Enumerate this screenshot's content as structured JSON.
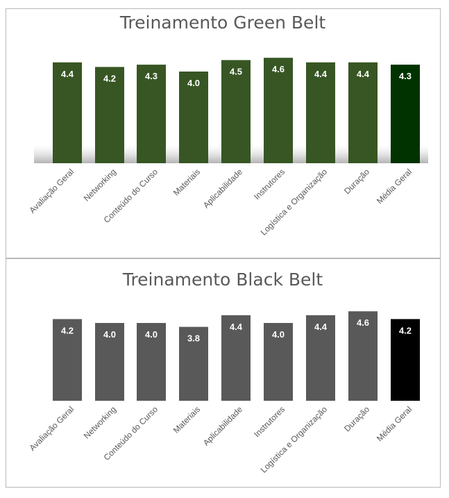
{
  "chart_data": [
    {
      "type": "bar",
      "title": "Treinamento Green Belt",
      "categories": [
        "Avaliação Geral",
        "Networking",
        "Conteúdo do Curso",
        "Materiais",
        "Aplicabilidade",
        "Instrutores",
        "Logística e Organização",
        "Duração",
        "Média Geral"
      ],
      "values": [
        4.4,
        4.2,
        4.3,
        4.0,
        4.5,
        4.6,
        4.4,
        4.4,
        4.3
      ],
      "value_labels": [
        "4.4",
        "4.2",
        "4.3",
        "4.0",
        "4.5",
        "4.6",
        "4.4",
        "4.4",
        "4.3"
      ],
      "xlabel": "",
      "ylabel": "",
      "ylim": [
        0,
        5
      ],
      "grid": false,
      "legend": "none",
      "colors": {
        "bar": "#375623",
        "highlight": "#003300"
      },
      "highlight_index": 8
    },
    {
      "type": "bar",
      "title": "Treinamento Black Belt",
      "categories": [
        "Avaliação Geral",
        "Networking",
        "Conteúdo do Curso",
        "Materiais",
        "Aplicabilidade",
        "Instrutores",
        "Logística e Organização",
        "Duração",
        "Média Geral"
      ],
      "values": [
        4.2,
        4.0,
        4.0,
        3.8,
        4.4,
        4.0,
        4.4,
        4.6,
        4.2
      ],
      "value_labels": [
        "4.2",
        "4.0",
        "4.0",
        "3.8",
        "4.4",
        "4.0",
        "4.4",
        "4.6",
        "4.2"
      ],
      "xlabel": "",
      "ylabel": "",
      "ylim": [
        0,
        5
      ],
      "grid": false,
      "legend": "none",
      "colors": {
        "bar": "#595959",
        "highlight": "#000000"
      },
      "highlight_index": 8
    }
  ]
}
